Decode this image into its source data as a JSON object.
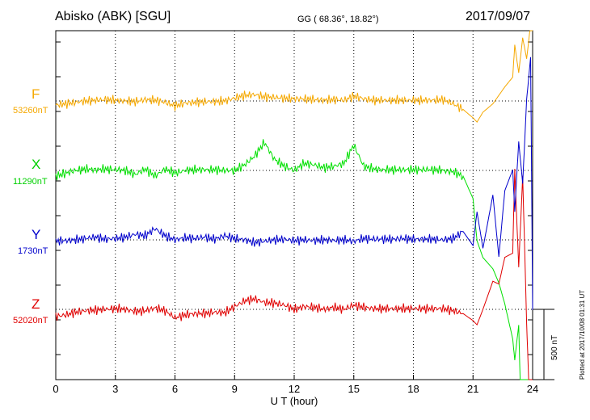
{
  "header": {
    "station": "Abisko (ABK)  [SGU]",
    "coords": "GG ( 68.36°,  18.82°)",
    "date": "2017/09/07"
  },
  "plotted_note": "Plotted at 2017/10/08 01:31  UT",
  "scale_label": "500 nT",
  "colors": {
    "F": "#f5a800",
    "X": "#00e000",
    "Y": "#0000cc",
    "Z": "#e00000"
  },
  "chart_data": {
    "type": "line",
    "xlabel": "U T (hour)",
    "xlim": [
      0,
      24
    ],
    "xticks": [
      "0",
      "3",
      "6",
      "9",
      "12",
      "15",
      "18",
      "21",
      "24"
    ],
    "grid": true,
    "scale_bar_nT": 500,
    "series": [
      {
        "name": "F",
        "baseline_label": "53260nT",
        "x": [
          0,
          0.5,
          1,
          1.5,
          2,
          2.5,
          3,
          3.5,
          4,
          4.5,
          5,
          5.5,
          6,
          6.5,
          7,
          7.5,
          8,
          8.5,
          9,
          9.5,
          10,
          10.5,
          11,
          11.5,
          12,
          12.5,
          13,
          13.5,
          14,
          14.5,
          15,
          15.5,
          16,
          16.5,
          17,
          17.5,
          18,
          18.5,
          19,
          19.5,
          20,
          20.5,
          21,
          21.2,
          21.5,
          22,
          22.3,
          22.6,
          23,
          23.1,
          23.3,
          23.5,
          23.7,
          23.9,
          24
        ],
        "y": [
          -30,
          -20,
          -10,
          0,
          5,
          10,
          5,
          0,
          -5,
          10,
          5,
          -10,
          -35,
          -15,
          -10,
          -5,
          -5,
          0,
          20,
          40,
          45,
          30,
          25,
          20,
          15,
          15,
          10,
          5,
          10,
          5,
          35,
          15,
          5,
          5,
          5,
          5,
          5,
          5,
          5,
          10,
          -20,
          -60,
          -120,
          -150,
          -80,
          -20,
          40,
          100,
          170,
          400,
          200,
          450,
          300,
          550,
          600
        ]
      },
      {
        "name": "X",
        "baseline_label": "11290nT",
        "x": [
          0,
          0.5,
          1,
          1.5,
          2,
          2.5,
          3,
          3.5,
          4,
          4.5,
          5,
          5.5,
          6,
          6.5,
          7,
          7.5,
          8,
          8.5,
          9,
          9.5,
          10,
          10.5,
          11,
          11.5,
          12,
          12.5,
          13,
          13.5,
          14,
          14.5,
          15,
          15.5,
          16,
          16.5,
          17,
          17.5,
          18,
          18.5,
          19,
          19.5,
          20,
          20.5,
          21,
          21.2,
          21.5,
          22,
          22.3,
          22.6,
          23,
          23.1,
          23.3,
          23.5,
          23.7,
          23.9,
          24
        ],
        "y": [
          -40,
          -20,
          0,
          10,
          5,
          10,
          5,
          0,
          -30,
          10,
          -40,
          10,
          -20,
          0,
          5,
          5,
          5,
          0,
          0,
          40,
          100,
          200,
          80,
          30,
          0,
          50,
          40,
          20,
          30,
          50,
          180,
          30,
          10,
          5,
          5,
          5,
          5,
          5,
          5,
          0,
          -10,
          -40,
          -200,
          -500,
          -620,
          -700,
          -800,
          -950,
          -1200,
          -1350,
          -1100,
          -2200,
          -1600,
          -2000,
          -1500
        ]
      },
      {
        "name": "Y",
        "baseline_label": "1730nT",
        "x": [
          0,
          0.5,
          1,
          1.5,
          2,
          2.5,
          3,
          3.5,
          4,
          4.5,
          5,
          5.5,
          6,
          6.5,
          7,
          7.5,
          8,
          8.5,
          9,
          9.5,
          10,
          10.5,
          11,
          11.5,
          12,
          12.5,
          13,
          13.5,
          14,
          14.5,
          15,
          15.5,
          16,
          16.5,
          17,
          17.5,
          18,
          18.5,
          19,
          19.5,
          20,
          20.5,
          21,
          21.2,
          21.5,
          22,
          22.3,
          22.6,
          23,
          23.1,
          23.3,
          23.5,
          23.7,
          23.9,
          24
        ],
        "y": [
          -10,
          -5,
          0,
          10,
          20,
          5,
          10,
          20,
          40,
          30,
          80,
          30,
          0,
          15,
          10,
          20,
          5,
          30,
          10,
          0,
          -20,
          -10,
          0,
          5,
          -5,
          0,
          -5,
          0,
          -5,
          0,
          -10,
          10,
          5,
          5,
          5,
          10,
          5,
          5,
          5,
          0,
          10,
          60,
          -40,
          200,
          -60,
          320,
          -120,
          350,
          500,
          200,
          700,
          400,
          1000,
          1300,
          -500
        ]
      },
      {
        "name": "Z",
        "baseline_label": "52020nT",
        "x": [
          0,
          0.5,
          1,
          1.5,
          2,
          2.5,
          3,
          3.5,
          4,
          4.5,
          5,
          5.5,
          6,
          6.5,
          7,
          7.5,
          8,
          8.5,
          9,
          9.5,
          10,
          10.5,
          11,
          11.5,
          12,
          12.5,
          13,
          13.5,
          14,
          14.5,
          15,
          15.5,
          16,
          16.5,
          17,
          17.5,
          18,
          18.5,
          19,
          19.5,
          20,
          20.5,
          21,
          21.2,
          21.5,
          22,
          22.3,
          22.6,
          23,
          23.1,
          23.3,
          23.5,
          23.7,
          23.9,
          24
        ],
        "y": [
          -50,
          -40,
          -20,
          -10,
          -5,
          0,
          5,
          0,
          -15,
          -10,
          10,
          -10,
          -60,
          -40,
          -30,
          -30,
          -20,
          -25,
          20,
          60,
          75,
          50,
          45,
          30,
          0,
          20,
          15,
          0,
          15,
          0,
          30,
          15,
          5,
          5,
          5,
          5,
          5,
          5,
          5,
          5,
          -10,
          -30,
          -80,
          -110,
          0,
          200,
          180,
          370,
          400,
          1000,
          300,
          950,
          -100,
          -900,
          -1100
        ]
      }
    ]
  }
}
